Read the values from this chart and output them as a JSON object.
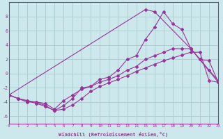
{
  "background_color": "#cce8ec",
  "grid_color": "#aacccc",
  "line_color": "#993399",
  "xlabel": "Windchill (Refroidissement éolien,°C)",
  "xlim": [
    0,
    23
  ],
  "ylim": [
    -7,
    10
  ],
  "yticks": [
    -6,
    -4,
    -2,
    0,
    2,
    4,
    6,
    8
  ],
  "xticks": [
    0,
    1,
    2,
    3,
    4,
    5,
    6,
    7,
    8,
    9,
    10,
    11,
    12,
    13,
    14,
    15,
    16,
    17,
    18,
    19,
    20,
    21,
    22,
    23
  ],
  "line1_x": [
    0,
    1,
    2,
    3,
    4,
    5,
    6,
    7,
    8,
    9,
    10,
    11,
    12,
    13,
    14,
    15,
    16,
    17,
    18,
    19,
    20,
    21,
    22,
    23
  ],
  "line1_y": [
    -3.0,
    -3.5,
    -3.8,
    -4.2,
    -4.6,
    -5.2,
    -5.0,
    -4.4,
    -3.5,
    -2.5,
    -1.8,
    -1.3,
    -0.8,
    -0.3,
    0.3,
    0.8,
    1.3,
    1.8,
    2.2,
    2.6,
    3.0,
    3.0,
    -1.0,
    -1.2
  ],
  "line2_x": [
    0,
    1,
    2,
    3,
    4,
    5,
    6,
    7,
    8,
    9,
    10,
    11,
    12,
    13,
    14,
    15,
    16,
    17,
    18,
    19,
    20,
    21,
    22,
    23
  ],
  "line2_y": [
    -3.0,
    -3.5,
    -4.0,
    -4.0,
    -4.5,
    -5.2,
    -4.5,
    -3.5,
    -2.0,
    -1.8,
    -0.8,
    -0.5,
    0.5,
    2.0,
    2.5,
    4.8,
    6.5,
    8.7,
    7.0,
    6.2,
    3.5,
    2.0,
    1.8,
    -1.2
  ],
  "line3_x": [
    0,
    15,
    16,
    20,
    23
  ],
  "line3_y": [
    -3.0,
    9.0,
    8.7,
    3.5,
    -1.2
  ],
  "line4_x": [
    0,
    1,
    2,
    3,
    4,
    5,
    6,
    7,
    8,
    9,
    10,
    11,
    12,
    13,
    14,
    15,
    16,
    17,
    18,
    19,
    20,
    21,
    22,
    23
  ],
  "line4_y": [
    -3.0,
    -3.5,
    -3.8,
    -4.0,
    -4.2,
    -5.0,
    -3.8,
    -3.0,
    -2.2,
    -1.8,
    -1.2,
    -0.8,
    -0.3,
    0.5,
    1.0,
    2.0,
    2.5,
    3.0,
    3.5,
    3.5,
    3.5,
    2.0,
    0.5,
    -1.0
  ]
}
